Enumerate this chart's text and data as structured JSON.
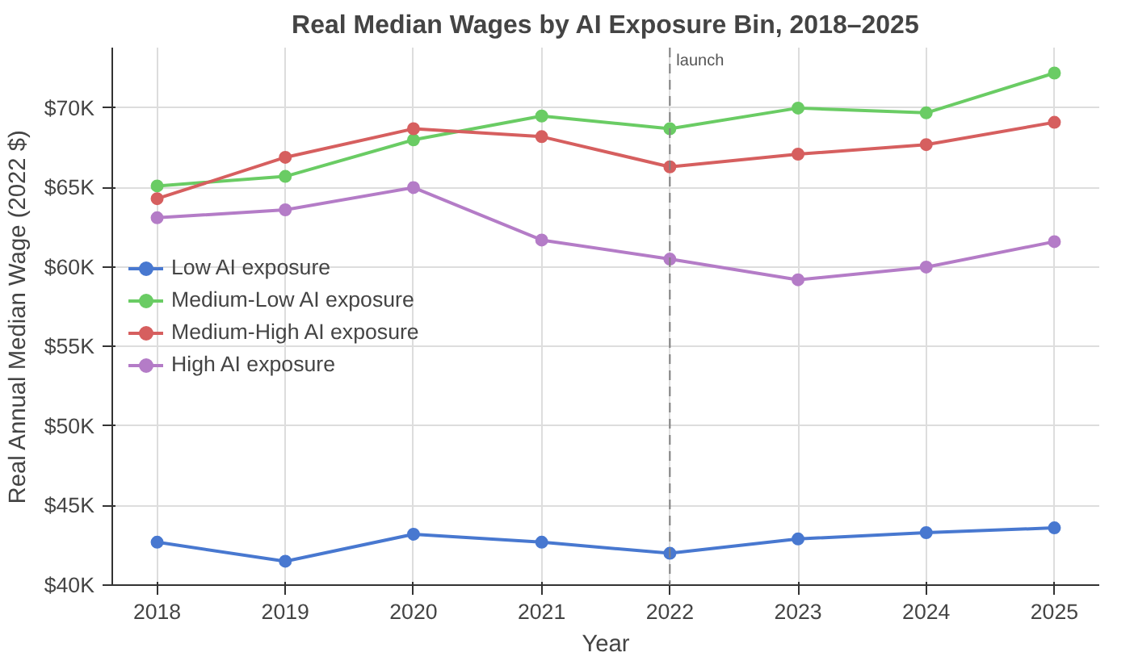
{
  "chart_data": {
    "type": "line",
    "title": "Real Median Wages by AI Exposure Bin, 2018–2025",
    "xlabel": "Year",
    "ylabel": "Real Annual Median Wage (2022 $)",
    "x": [
      2018,
      2019,
      2020,
      2021,
      2022,
      2023,
      2024,
      2025
    ],
    "xlim": [
      2017.65,
      2025.35
    ],
    "xticks": [
      2018,
      2019,
      2020,
      2021,
      2022,
      2023,
      2024,
      2025
    ],
    "ylim": [
      40000,
      73800
    ],
    "yticks": [
      {
        "value": 40000,
        "label": "$40K"
      },
      {
        "value": 45000,
        "label": "$45K"
      },
      {
        "value": 50000,
        "label": "$50K"
      },
      {
        "value": 55000,
        "label": "$55K"
      },
      {
        "value": 60000,
        "label": "$60K"
      },
      {
        "value": 65000,
        "label": "$65K"
      },
      {
        "value": 70000,
        "label": "$70K"
      }
    ],
    "series": [
      {
        "name": "Low AI exposure",
        "color": "#4878d0",
        "values": [
          42700,
          41500,
          43200,
          42700,
          42000,
          42900,
          43300,
          43600
        ]
      },
      {
        "name": "Medium-Low AI exposure",
        "color": "#6acc64",
        "values": [
          65100,
          65700,
          68000,
          69500,
          68700,
          70000,
          69700,
          72200
        ]
      },
      {
        "name": "Medium-High AI exposure",
        "color": "#d65f5f",
        "values": [
          64300,
          66900,
          68700,
          68200,
          66300,
          67100,
          67700,
          69100
        ]
      },
      {
        "name": "High AI exposure",
        "color": "#b47cc7",
        "values": [
          63100,
          63600,
          65000,
          61700,
          60500,
          59200,
          60000,
          61600
        ]
      }
    ],
    "ref_lines": [
      {
        "axis": "x",
        "value": 2022,
        "label": "launch",
        "color": "#808080",
        "line_style": "dashed"
      }
    ],
    "marker": "circle",
    "line_style": "solid",
    "grid": true,
    "legend": "left"
  }
}
